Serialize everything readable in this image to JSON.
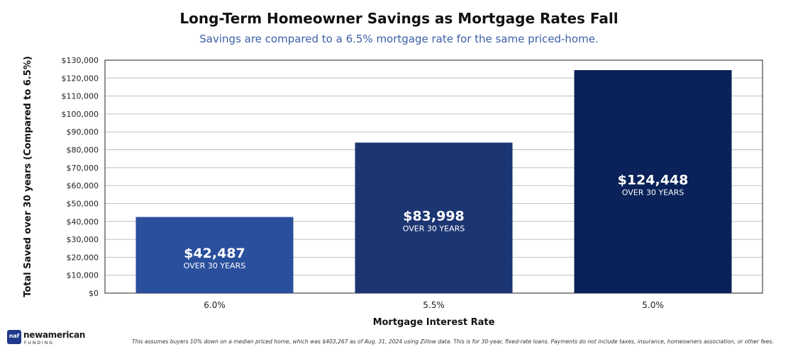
{
  "chart_data": {
    "type": "bar",
    "title": "Long-Term Homeowner Savings as Mortgage Rates Fall",
    "subtitle": "Savings are compared to a 6.5% mortgage rate for the same priced-home.",
    "xlabel": "Mortgage Interest Rate",
    "ylabel": "Total Saved over 30 years  (Compared to 6.5%)",
    "categories": [
      "6.0%",
      "5.5%",
      "5.0%"
    ],
    "values": [
      42487,
      83998,
      124448
    ],
    "bar_value_labels": [
      "$42,487",
      "$83,998",
      "$124,448"
    ],
    "bar_sub_label": "OVER 30 YEARS",
    "bar_colors": [
      "#2a4f9c",
      "#1c3673",
      "#0a2259"
    ],
    "ylim": [
      0,
      130000
    ],
    "yticks": [
      0,
      10000,
      20000,
      30000,
      40000,
      50000,
      60000,
      70000,
      80000,
      90000,
      100000,
      110000,
      120000,
      130000
    ],
    "ytick_labels": [
      "$0",
      "$10,000",
      "$20,000",
      "$30,000",
      "$40,000",
      "$50,000",
      "$60,000",
      "$70,000",
      "$80,000",
      "$90,000",
      "$100,000",
      "$110,000",
      "$120,000",
      "$130,000"
    ],
    "grid": true,
    "legend": "none"
  },
  "footnote": "This assumes buyers 10% down on a median  priced home, which was $403,267 as of Aug. 31, 2024 using Zillow data. This is for 30-year, fixed-rate loans. Payments do not include taxes, insurance, homeowners association, or other fees.",
  "logo": {
    "badge": "naf",
    "name": "newamerican",
    "sub": "FUNDING"
  },
  "colors": {
    "subtitle": "#3b5fa8",
    "grid": "#bfbfbf",
    "axis": "#222222"
  }
}
